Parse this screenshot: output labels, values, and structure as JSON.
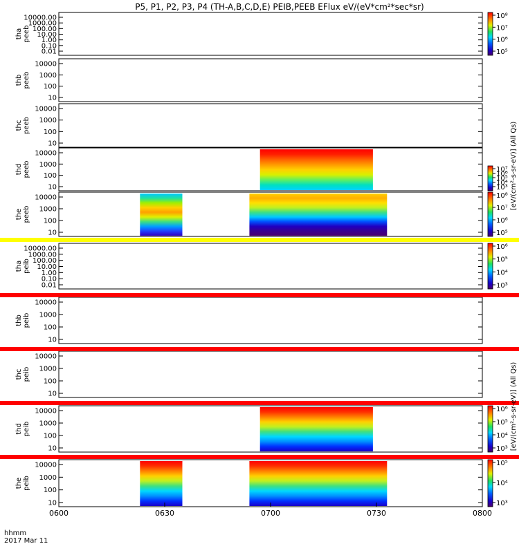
{
  "title": "P5, P1, P2, P3, P4 (TH-A,B,C,D,E) PEIB,PEEB EFlux eV/(eV*cm²*sec*sr)",
  "x_label_line1": "hhmm",
  "x_label_line2": "2017 Mar 11",
  "x_ticks": [
    "0600",
    "0630",
    "0700",
    "0730",
    "0800"
  ],
  "cb_unit_electron": "[eV/(cm²-s-sr-eV)] (All Qs)",
  "cb_unit_ion": "[eV/(cm²-s-sr-eV)] (All Qs)",
  "chart_data": {
    "type": "heatmap",
    "x_range": [
      "06:00",
      "08:00"
    ],
    "colormap": "rainbow (violet-blue-cyan-green-yellow-red)",
    "panels": [
      {
        "name": "tha\npeeb",
        "ylabels": [
          "10000.00",
          "1000.00",
          "100.00",
          "10.00",
          "1.00",
          "0.10",
          "0.01"
        ],
        "ylim": [
          0.01,
          20000
        ],
        "cb_ticks": [
          "10⁸",
          "10⁷",
          "10⁶",
          "10⁵"
        ],
        "cb_range_exp": [
          4.5,
          8.3
        ],
        "blocks": []
      },
      {
        "name": "thb\npeeb",
        "ylabels": [
          "10000",
          "1000",
          "100",
          "10"
        ],
        "ylim": [
          7,
          25000
        ],
        "blocks": []
      },
      {
        "name": "thc\npeeb",
        "ylabels": [
          "10000",
          "1000",
          "100",
          "10"
        ],
        "ylim": [
          7,
          25000
        ],
        "blocks": []
      },
      {
        "name": "thd\npeeb",
        "ylabels": [
          "10000",
          "1000",
          "100",
          "10"
        ],
        "ylim": [
          7,
          25000
        ],
        "cb_ticks": [
          "10⁷",
          "10⁶",
          "10⁵",
          "10⁴",
          "10³"
        ],
        "cb_range_exp": [
          2.8,
          7.5
        ],
        "blocks": [
          {
            "x": [
              "06:57",
              "07:29"
            ],
            "profile": "electron-strong"
          }
        ]
      },
      {
        "name": "the\npeeb",
        "ylabels": [
          "10000",
          "1000",
          "100",
          "10"
        ],
        "ylim": [
          7,
          25000
        ],
        "cb_ticks": [
          "10⁸",
          "10⁷",
          "10⁶",
          "10⁵"
        ],
        "cb_range_exp": [
          4.5,
          8.3
        ],
        "blocks": [
          {
            "x": [
              "06:23",
              "06:35"
            ],
            "profile": "electron-weak"
          },
          {
            "x": [
              "06:54",
              "07:33"
            ],
            "profile": "electron-mid"
          }
        ]
      },
      {
        "name": "tha\npeib",
        "ylabels": [
          "10000.00",
          "1000.00",
          "100.00",
          "10.00",
          "1.00",
          "0.10",
          "0.01"
        ],
        "ylim": [
          0.01,
          20000
        ],
        "cb_ticks": [
          "10⁶",
          "10⁵",
          "10⁴",
          "10³"
        ],
        "cb_range_exp": [
          2.5,
          6.5
        ],
        "blocks": []
      },
      {
        "name": "thb\npeib",
        "ylabels": [
          "10000",
          "1000",
          "100",
          "10"
        ],
        "ylim": [
          7,
          25000
        ],
        "blocks": []
      },
      {
        "name": "thc\npeib",
        "ylabels": [
          "10000",
          "1000",
          "100",
          "10"
        ],
        "ylim": [
          7,
          25000
        ],
        "blocks": []
      },
      {
        "name": "thd\npeib",
        "ylabels": [
          "10000",
          "1000",
          "100",
          "10"
        ],
        "ylim": [
          7,
          25000
        ],
        "cb_ticks": [
          "10⁶",
          "10⁵",
          "10⁴",
          "10³"
        ],
        "cb_range_exp": [
          2.5,
          6.5
        ],
        "blocks": [
          {
            "x": [
              "06:57",
              "07:29"
            ],
            "profile": "ion"
          }
        ]
      },
      {
        "name": "the\npeib",
        "ylabels": [
          "10000",
          "1000",
          "100",
          "10"
        ],
        "ylim": [
          7,
          25000
        ],
        "cb_ticks": [
          "10⁵",
          "10⁴",
          "10³"
        ],
        "cb_range_exp": [
          2.5,
          5.7
        ],
        "blocks": [
          {
            "x": [
              "06:23",
              "06:35"
            ],
            "profile": "ion"
          },
          {
            "x": [
              "06:54",
              "07:33"
            ],
            "profile": "ion"
          }
        ]
      }
    ]
  }
}
